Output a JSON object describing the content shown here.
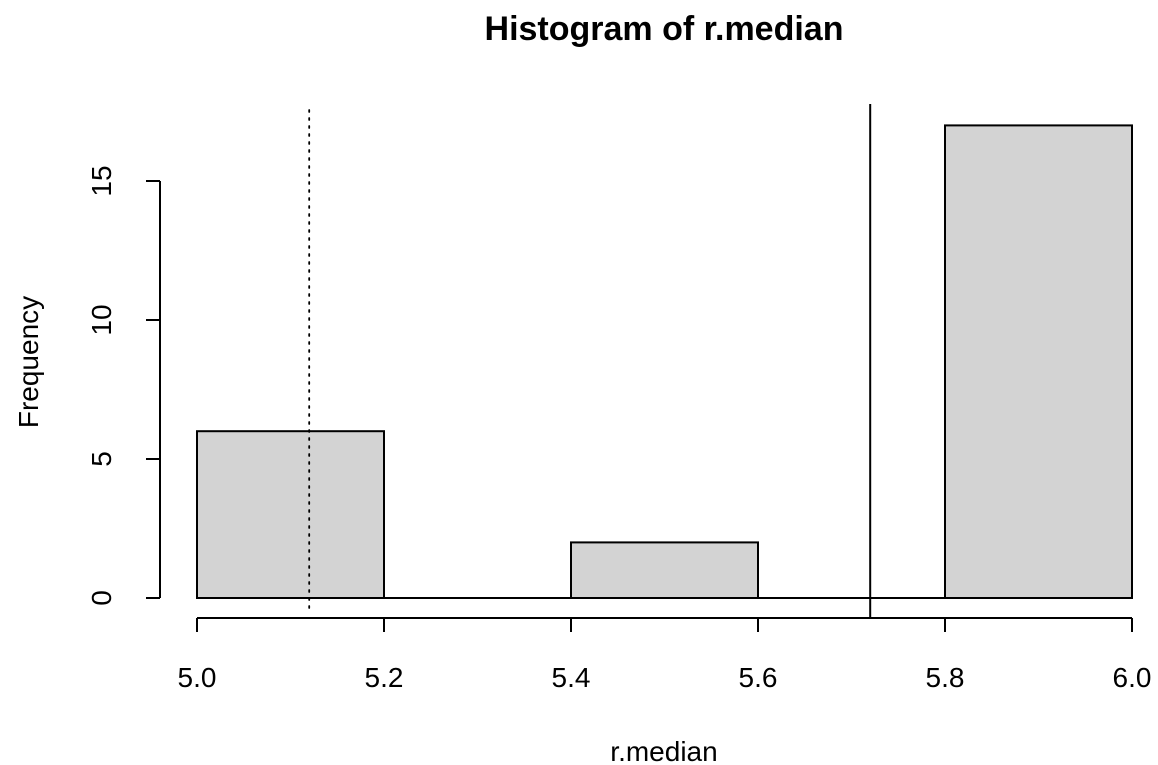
{
  "chart_data": {
    "type": "bar",
    "title": "Histogram of r.median",
    "xlabel": "r.median",
    "ylabel": "Frequency",
    "bins": [
      {
        "from": 5.0,
        "to": 5.2,
        "count": 6
      },
      {
        "from": 5.2,
        "to": 5.4,
        "count": 0
      },
      {
        "from": 5.4,
        "to": 5.6,
        "count": 2
      },
      {
        "from": 5.6,
        "to": 5.8,
        "count": 0
      },
      {
        "from": 5.8,
        "to": 6.0,
        "count": 17
      }
    ],
    "xlim": [
      5.0,
      6.0
    ],
    "ylim": [
      0,
      17
    ],
    "x_ticks": [
      "5.0",
      "5.2",
      "5.4",
      "5.6",
      "5.8",
      "6.0"
    ],
    "y_ticks": [
      "0",
      "5",
      "10",
      "15"
    ],
    "reference_lines": [
      {
        "x": 5.12,
        "style": "dotted"
      },
      {
        "x": 5.72,
        "style": "solid"
      }
    ],
    "grid": false,
    "colors": {
      "bar_fill": "#d3d3d3",
      "bar_stroke": "#000000",
      "axis": "#000000"
    }
  }
}
